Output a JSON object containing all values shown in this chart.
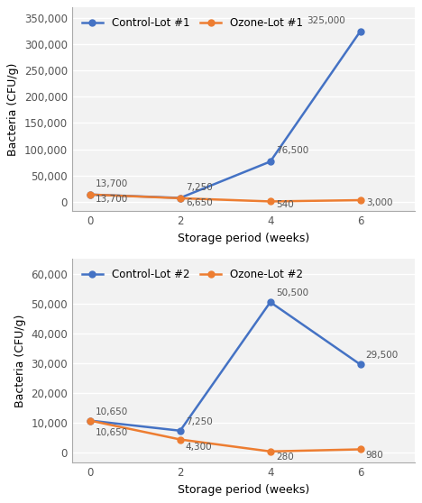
{
  "x": [
    0,
    2,
    4,
    6
  ],
  "plot1": {
    "control": [
      13700,
      7250,
      76500,
      325000
    ],
    "ozone": [
      13700,
      6650,
      540,
      3000
    ],
    "control_label": "Control-Lot #1",
    "ozone_label": "Ozone-Lot #1",
    "ylabel": "Bacteria (CFU/g)",
    "xlabel": "Storage period (weeks)",
    "yticks": [
      0,
      50000,
      100000,
      150000,
      200000,
      250000,
      300000,
      350000
    ],
    "ytick_labels": [
      "0",
      "50,000",
      "100,000",
      "150,000",
      "200,000",
      "250,000",
      "300,000",
      "350,000"
    ],
    "ylim": [
      -18000,
      370000
    ],
    "xlim": [
      -0.4,
      7.2
    ]
  },
  "plot2": {
    "control": [
      10650,
      7250,
      50500,
      29500
    ],
    "ozone": [
      10650,
      4300,
      280,
      980
    ],
    "control_label": "Control-Lot #2",
    "ozone_label": "Ozone-Lot #2",
    "ylabel": "Bacteria (CFU/g)",
    "xlabel": "Storage period (weeks)",
    "yticks": [
      0,
      10000,
      20000,
      30000,
      40000,
      50000,
      60000
    ],
    "ytick_labels": [
      "0",
      "10,000",
      "20,000",
      "30,000",
      "40,000",
      "50,000",
      "60,000"
    ],
    "ylim": [
      -3500,
      65000
    ],
    "xlim": [
      -0.4,
      7.2
    ]
  },
  "control_color": "#4472C4",
  "ozone_color": "#ED7D31",
  "bg_color": "#F2F2F2",
  "grid_color": "#FFFFFF",
  "marker": "o",
  "markersize": 5,
  "linewidth": 1.8,
  "annotation_fontsize": 7.5,
  "axis_label_fontsize": 9,
  "tick_fontsize": 8.5,
  "legend_fontsize": 8.5
}
